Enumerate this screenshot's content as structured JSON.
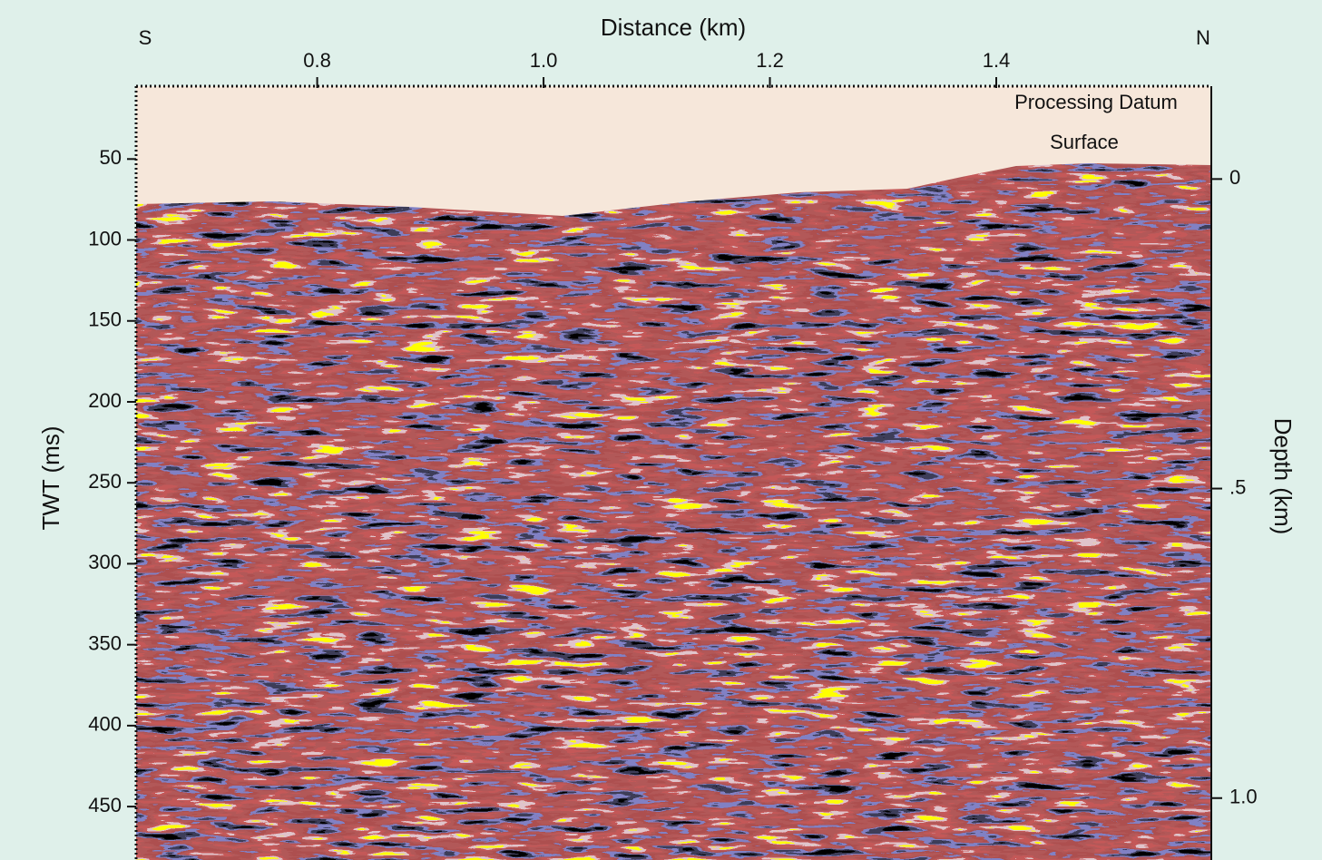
{
  "chart_data": {
    "type": "seismic-section",
    "xlabel": "Distance (km)",
    "ylabel": "TWT (ms)",
    "y2label": "Depth (km)",
    "direction_labels": [
      "S",
      "N"
    ],
    "annotations": [
      "Processing Datum",
      "Surface"
    ],
    "xlim": [
      0.64,
      1.59
    ],
    "xticks": [
      0.8,
      {
        "value": 1.0,
        "label": "1.0"
      },
      1.2,
      1.4
    ],
    "ylim": [
      5,
      483
    ],
    "y_reversed": true,
    "yticks": [
      50,
      100,
      150,
      200,
      250,
      300,
      350,
      400,
      450
    ],
    "y2lim": [
      -0.15,
      1.1
    ],
    "y2ticks": [
      0,
      {
        "value": 0.5,
        "label": ".5"
      },
      {
        "value": 1.0,
        "label": "1.0"
      }
    ]
  }
}
